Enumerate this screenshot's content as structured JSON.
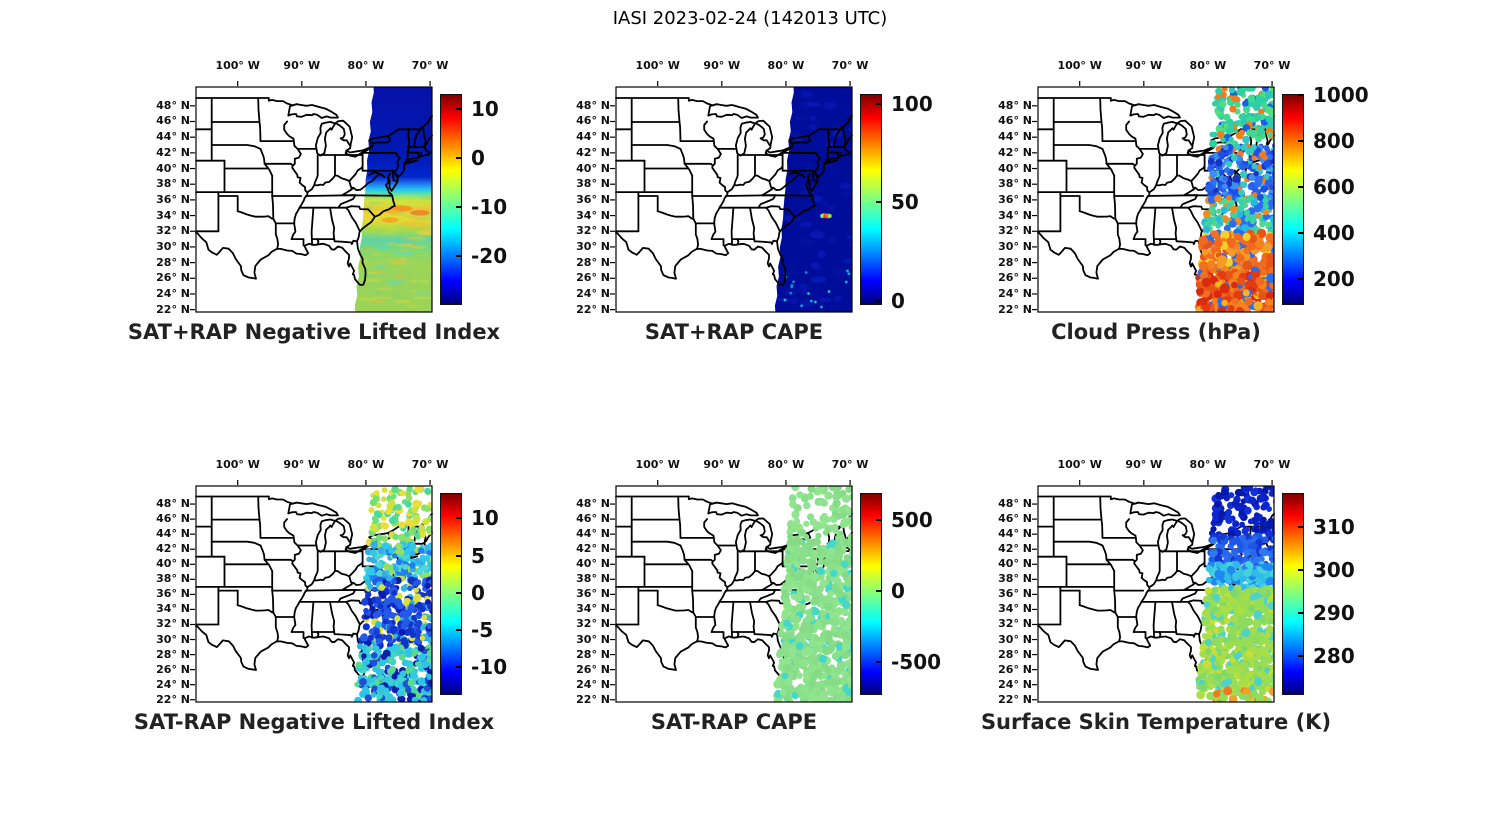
{
  "title": "IASI 2023-02-24 (142013 UTC)",
  "axes": {
    "lon_tick_labels": [
      "100° W",
      "90° W",
      "80° W",
      "70° W"
    ],
    "lon_tick_values": [
      -100,
      -90,
      -80,
      -70
    ],
    "lat_tick_labels": [
      "48° N",
      "46° N",
      "44° N",
      "42° N",
      "40° N",
      "38° N",
      "36° N",
      "34° N",
      "32° N",
      "30° N",
      "28° N",
      "26° N",
      "24° N",
      "22° N"
    ],
    "lat_tick_values": [
      48,
      46,
      44,
      42,
      40,
      38,
      36,
      34,
      32,
      30,
      28,
      26,
      24,
      22
    ],
    "lon_range": [
      -106.5,
      -69.7
    ],
    "lat_range": [
      21.7,
      50.4
    ]
  },
  "swath": {
    "lon_left_at_50N": -78.85,
    "width_deg": 12.3,
    "westward_drift_deg_per_deg_lat": 0.1,
    "lat_range": [
      21.7,
      50.4
    ]
  },
  "colorbar_style": {
    "colormap": "jet",
    "jet_stops_top_to_bottom": [
      "#7f0000",
      "#ff0000",
      "#ffff00",
      "#00ffff",
      "#0000ff",
      "#00007f"
    ]
  },
  "chart_data": [
    {
      "key": "sat_plus_rap_nli",
      "title": "SAT+RAP Negative Lifted Index",
      "type": "scatter-map",
      "grid": {
        "row": 0,
        "col": 0
      },
      "render": "swath-gradient",
      "colorbar": {
        "cmin": -30,
        "cmax": 13,
        "ticks": [
          10,
          0,
          -10,
          -20
        ]
      },
      "gradient": [
        [
          0,
          "#0712a8"
        ],
        [
          0.3,
          "#0018b4"
        ],
        [
          0.4,
          "#0027cd"
        ],
        [
          0.43,
          "#2377ee"
        ],
        [
          0.455,
          "#22c4f2"
        ],
        [
          0.48,
          "#6ee498"
        ],
        [
          0.505,
          "#cfe43c"
        ],
        [
          0.545,
          "#e8c936"
        ],
        [
          0.575,
          "#ecd834"
        ],
        [
          0.6,
          "#dcda38"
        ],
        [
          0.64,
          "#a0da50"
        ],
        [
          0.68,
          "#5fd2a8"
        ],
        [
          0.72,
          "#7cd878"
        ],
        [
          0.78,
          "#9cd658"
        ],
        [
          0.88,
          "#98d45c"
        ],
        [
          1,
          "#9cd455"
        ]
      ],
      "overlays": [
        [
          -74.5,
          34.9,
          3.5,
          0.4,
          "#f5901e",
          0.9
        ],
        [
          -71.6,
          34.35,
          3,
          0.35,
          "#f07d28",
          0.85
        ],
        [
          -76.2,
          33.45,
          2.6,
          0.35,
          "#f5a01e",
          0.8
        ],
        [
          -72.5,
          33.0,
          4,
          0.35,
          "#eec432",
          0.8
        ],
        [
          -70.6,
          31.8,
          3,
          0.3,
          "#e8d23a",
          0.75
        ],
        [
          -75.8,
          34.5,
          2,
          0.3,
          "#f2b22e",
          0.8
        ],
        [
          -73.0,
          35.6,
          4,
          0.4,
          "#cfe43c",
          0.7
        ],
        [
          -77.3,
          30.0,
          2.2,
          0.3,
          "#52d6c8",
          0.6
        ],
        [
          -74.0,
          29.2,
          3,
          0.3,
          "#5cd8c0",
          0.55
        ],
        [
          -78.0,
          27.5,
          2.5,
          0.3,
          "#74da9a",
          0.5
        ],
        [
          -75.5,
          25.5,
          3,
          0.35,
          "#66d8b0",
          0.5
        ],
        [
          -71.0,
          24.0,
          3,
          0.3,
          "#7ad890",
          0.5
        ]
      ],
      "texture": {
        "n": 90,
        "lat": [
          21.9,
          36.8
        ],
        "colors": [
          "#e2de38",
          "#c8dc46",
          "#a8d84e",
          "#f0b43c",
          "#7cd87a"
        ],
        "opacity": 0.35
      },
      "regions": [
        {
          "lat": [
            39,
            50
          ],
          "approx_value": -27
        },
        {
          "lat": [
            33,
            39
          ],
          "approx_value": 0
        },
        {
          "lat": [
            22,
            33
          ],
          "approx_value": -5
        }
      ]
    },
    {
      "key": "sat_plus_rap_cape",
      "title": "SAT+RAP CAPE",
      "type": "scatter-map",
      "grid": {
        "row": 0,
        "col": 1
      },
      "render": "swath-solid",
      "colorbar": {
        "cmin": -2,
        "cmax": 105,
        "ticks": [
          100,
          50,
          0
        ]
      },
      "fill": "#000d9b",
      "mottle": {
        "n": 55,
        "colors": [
          "#0a1cc2",
          "#0416a6",
          "#1026cf"
        ],
        "opacity": 0.45
      },
      "hotspot": [
        [
          -74.35,
          33.95,
          "#35d6c8"
        ],
        [
          -74.1,
          34.0,
          "#f0e028"
        ],
        [
          -73.85,
          33.95,
          "#e83812"
        ],
        [
          -73.6,
          34.0,
          "#f57f17"
        ],
        [
          -73.45,
          33.9,
          "#e85010"
        ],
        [
          -73.2,
          33.95,
          "#8fe05a"
        ]
      ],
      "speckles": {
        "n": 16,
        "lat": [
          22,
          27
        ],
        "colors": [
          "#19b8d8",
          "#2ad0c0",
          "#1e90e0"
        ]
      },
      "regions": [
        {
          "lat": [
            22,
            50
          ],
          "approx_value": 2
        },
        {
          "lat": [
            33.8,
            34.1
          ],
          "approx_value": 90
        }
      ]
    },
    {
      "key": "cloud_press",
      "title": "Cloud Press (hPa)",
      "type": "scatter-map",
      "grid": {
        "row": 0,
        "col": 2
      },
      "render": "dots",
      "colorbar": {
        "cmin": 85,
        "cmax": 1005,
        "ticks": [
          1000,
          800,
          600,
          400,
          200
        ]
      },
      "bands": [
        {
          "lat": [
            43,
            50.3
          ],
          "n": 230,
          "r": [
            2.6,
            4
          ],
          "colors": [
            "#2ecfa4",
            "#41d98e",
            "#30c7b8",
            "#52dd7f",
            "#2ecfa4",
            "#41d98e",
            "#1560e6",
            "#ef7d1f"
          ],
          "approx_value": 500
        },
        {
          "lat": [
            36.2,
            43
          ],
          "n": 240,
          "r": [
            2.6,
            4
          ],
          "colors": [
            "#1b4fe8",
            "#2e6ef0",
            "#1733c8",
            "#3f8df2",
            "#2a5fe8",
            "#ef7d1f",
            "#35c9c0",
            "#1b4fe8"
          ],
          "approx_value": 300
        },
        {
          "lat": [
            31.8,
            36.2
          ],
          "n": 150,
          "r": [
            2.6,
            4
          ],
          "colors": [
            "#3bd0a8",
            "#2a6cee",
            "#52d889",
            "#27b8de",
            "#3bd0a8",
            "#ef8c1f"
          ],
          "approx_value": 420
        },
        {
          "lat": [
            26.5,
            31.8
          ],
          "n": 210,
          "r": [
            3,
            5
          ],
          "colors": [
            "#f2691d",
            "#e85318",
            "#f4831f",
            "#ef7020",
            "#f29b26",
            "#f2d026",
            "#2a6cee",
            "#f2691d"
          ],
          "approx_value": 810
        },
        {
          "lat": [
            21.8,
            26.5
          ],
          "n": 260,
          "r": [
            3,
            5
          ],
          "colors": [
            "#f2691d",
            "#e33c12",
            "#f4831f",
            "#d82a0e",
            "#ef7020",
            "#f2b426",
            "#e85318",
            "#2a6cee"
          ],
          "approx_value": 860
        }
      ],
      "gaps": [
        43.4
      ]
    },
    {
      "key": "sat_minus_rap_nli",
      "title": "SAT-RAP Negative Lifted Index",
      "type": "scatter-map",
      "grid": {
        "row": 1,
        "col": 0
      },
      "render": "dots",
      "colorbar": {
        "cmin": -13.7,
        "cmax": 13.4,
        "ticks": [
          10,
          5,
          0,
          -5,
          -10
        ]
      },
      "bands": [
        {
          "lat": [
            42.8,
            50.3
          ],
          "n": 140,
          "r": [
            2.6,
            4
          ],
          "colors": [
            "#5cdd86",
            "#8fe066",
            "#cfe23c",
            "#49d9a0",
            "#6fdf78",
            "#e8e038"
          ],
          "approx_value": 0
        },
        {
          "lat": [
            38,
            42.8
          ],
          "n": 200,
          "r": [
            2.6,
            4
          ],
          "colors": [
            "#2fc9e8",
            "#35aee8",
            "#53d6d0",
            "#1f7ff0",
            "#2fc9e8",
            "#96e060"
          ],
          "approx_value": -4
        },
        {
          "lat": [
            29,
            38
          ],
          "n": 330,
          "r": [
            2.6,
            4
          ],
          "colors": [
            "#1232cc",
            "#0a1bb0",
            "#2559e8",
            "#30b4e0",
            "#1232cc",
            "#1a42d8",
            "#d8e03c",
            "#2559e8"
          ],
          "approx_value": -9
        },
        {
          "lat": [
            21.8,
            29
          ],
          "n": 300,
          "r": [
            2.6,
            4
          ],
          "colors": [
            "#2fc3e6",
            "#1d4fd8",
            "#41d6c3",
            "#0c20a8",
            "#35c9e0",
            "#2fc3e6",
            "#5cd98a"
          ],
          "approx_value": -6
        }
      ],
      "gaps": []
    },
    {
      "key": "sat_minus_rap_cape",
      "title": "SAT-RAP CAPE",
      "type": "scatter-map",
      "grid": {
        "row": 1,
        "col": 1
      },
      "render": "dots",
      "colorbar": {
        "cmin": -730,
        "cmax": 690,
        "ticks": [
          500,
          0,
          -500
        ]
      },
      "bands": [
        {
          "lat": [
            43,
            50.3
          ],
          "n": 110,
          "r": [
            3,
            4.2
          ],
          "colors": [
            "#8be08b",
            "#8fe58c",
            "#86dc86",
            "#92e392"
          ],
          "approx_value": 0
        },
        {
          "lat": [
            21.8,
            43
          ],
          "n": 780,
          "r": [
            3.2,
            4.4
          ],
          "colors": [
            "#8be08b",
            "#8fe58c",
            "#86dc86",
            "#92e392",
            "#8be08b",
            "#8fe58c",
            "#86dc86",
            "#45d8c8"
          ],
          "approx_value": 0
        }
      ],
      "gaps": []
    },
    {
      "key": "surface_skin_temp",
      "title": "Surface Skin Temperature (K)",
      "type": "scatter-map",
      "grid": {
        "row": 1,
        "col": 2
      },
      "render": "dots",
      "colorbar": {
        "cmin": 271,
        "cmax": 318,
        "ticks": [
          310,
          300,
          290,
          280
        ]
      },
      "bands": [
        {
          "lat": [
            43.8,
            50.3
          ],
          "n": 150,
          "r": [
            2.8,
            4.2
          ],
          "colors": [
            "#0b1fc0",
            "#0618a8",
            "#1030d8",
            "#0b24cc"
          ],
          "approx_value": 273
        },
        {
          "lat": [
            40,
            43.8
          ],
          "n": 150,
          "r": [
            2.8,
            4.2
          ],
          "colors": [
            "#1d56e8",
            "#2e79f0",
            "#1336d0",
            "#2a66ec"
          ],
          "approx_value": 281
        },
        {
          "lat": [
            36.8,
            40
          ],
          "n": 170,
          "r": [
            2.8,
            4.2
          ],
          "colors": [
            "#2fb9ea",
            "#45d2dc",
            "#1e8af0",
            "#38c4e4"
          ],
          "approx_value": 288
        },
        {
          "lat": [
            23.3,
            36.8
          ],
          "n": 620,
          "r": [
            3,
            4.4
          ],
          "colors": [
            "#97dd55",
            "#aade45",
            "#7fd86a",
            "#c3e03a",
            "#8fdb60",
            "#4fd2c8",
            "#97dd55",
            "#a5dd4d"
          ],
          "approx_value": 294
        },
        {
          "lat": [
            21.8,
            23.3
          ],
          "n": 40,
          "r": [
            3,
            4.6
          ],
          "colors": [
            "#8fdb60",
            "#f2a026",
            "#aade45",
            "#f07820",
            "#97dd55"
          ],
          "approx_value": 299
        }
      ],
      "gaps": [
        37.35,
        31.8
      ]
    }
  ]
}
